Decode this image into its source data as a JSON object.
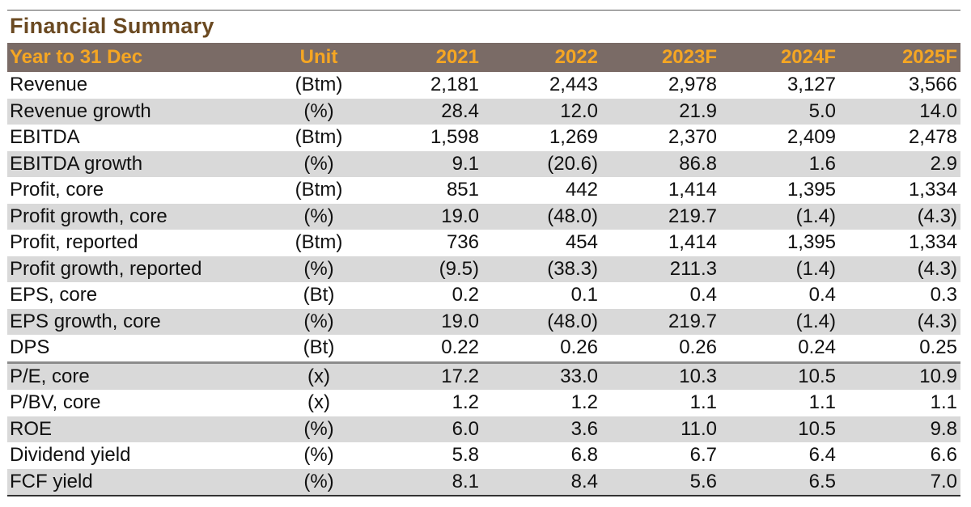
{
  "title": "Financial Summary",
  "header": {
    "label": "Year to 31 Dec",
    "unit": "Unit",
    "years": [
      "2021",
      "2022",
      "2023F",
      "2024F",
      "2025F"
    ]
  },
  "colors": {
    "header_bg": "#7a6b66",
    "header_text": "#f5a623",
    "title": "#6b4a22",
    "row_shade": "#d9d9d9"
  },
  "rows": [
    {
      "label": "Revenue",
      "unit": "(Btm)",
      "values": [
        "2,181",
        "2,443",
        "2,978",
        "3,127",
        "3,566"
      ]
    },
    {
      "label": "Revenue growth",
      "unit": "(%)",
      "values": [
        "28.4",
        "12.0",
        "21.9",
        "5.0",
        "14.0"
      ]
    },
    {
      "label": "EBITDA",
      "unit": "(Btm)",
      "values": [
        "1,598",
        "1,269",
        "2,370",
        "2,409",
        "2,478"
      ]
    },
    {
      "label": "EBITDA growth",
      "unit": "(%)",
      "values": [
        "9.1",
        "(20.6)",
        "86.8",
        "1.6",
        "2.9"
      ]
    },
    {
      "label": "Profit, core",
      "unit": "(Btm)",
      "values": [
        "851",
        "442",
        "1,414",
        "1,395",
        "1,334"
      ]
    },
    {
      "label": "Profit growth, core",
      "unit": "(%)",
      "values": [
        "19.0",
        "(48.0)",
        "219.7",
        "(1.4)",
        "(4.3)"
      ]
    },
    {
      "label": "Profit, reported",
      "unit": "(Btm)",
      "values": [
        "736",
        "454",
        "1,414",
        "1,395",
        "1,334"
      ]
    },
    {
      "label": "Profit growth, reported",
      "unit": "(%)",
      "values": [
        "(9.5)",
        "(38.3)",
        "211.3",
        "(1.4)",
        "(4.3)"
      ]
    },
    {
      "label": "EPS, core",
      "unit": "(Bt)",
      "values": [
        "0.2",
        "0.1",
        "0.4",
        "0.4",
        "0.3"
      ]
    },
    {
      "label": "EPS growth, core",
      "unit": "(%)",
      "values": [
        "19.0",
        "(48.0)",
        "219.7",
        "(1.4)",
        "(4.3)"
      ]
    },
    {
      "label": "DPS",
      "unit": "(Bt)",
      "values": [
        "0.22",
        "0.26",
        "0.26",
        "0.24",
        "0.25"
      ]
    },
    {
      "label": "P/E, core",
      "unit": "(x)",
      "values": [
        "17.2",
        "33.0",
        "10.3",
        "10.5",
        "10.9"
      ]
    },
    {
      "label": "P/BV, core",
      "unit": "(x)",
      "values": [
        "1.2",
        "1.2",
        "1.1",
        "1.1",
        "1.1"
      ]
    },
    {
      "label": "ROE",
      "unit": "(%)",
      "values": [
        "6.0",
        "3.6",
        "11.0",
        "10.5",
        "9.8"
      ]
    },
    {
      "label": "Dividend yield",
      "unit": "(%)",
      "values": [
        "5.8",
        "6.8",
        "6.7",
        "6.4",
        "6.6"
      ]
    },
    {
      "label": "FCF yield",
      "unit": "(%)",
      "values": [
        "8.1",
        "8.4",
        "5.6",
        "6.5",
        "7.0"
      ]
    }
  ]
}
